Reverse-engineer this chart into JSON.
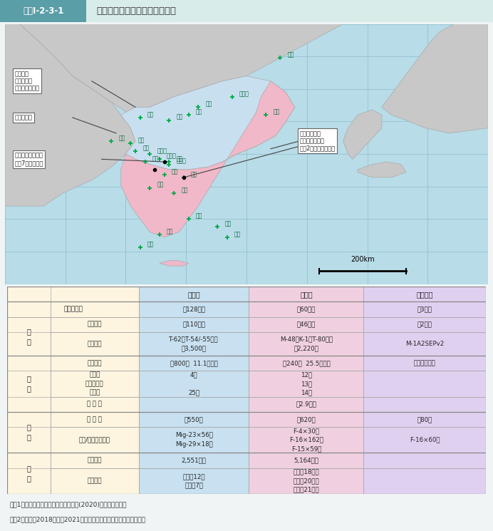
{
  "title_tag": "図表Ⅰ-2-3-1",
  "title_text": "朝鮮半島における軍事力の対峙",
  "title_bar_color": "#5a9ea8",
  "title_bg_color": "#d8ecea",
  "page_bg": "#f0f4f4",
  "note1": "（注1）資料は「ミリタリー・バランス(2020)」などによる。",
  "note2": "（注2）韓国は2018年から2021年にかけて兵役期間を段階的に短縮中",
  "map_sea_color": "#b8dce8",
  "map_land_color": "#c8c8c8",
  "map_nk_color": "#c8dff0",
  "map_sk_color": "#f0b8c8",
  "map_grid_color": "#90c0d0",
  "col_nk_bg": "#c8e0f0",
  "col_kr_bg": "#f0d0e0",
  "col_us_bg": "#e0d0f0",
  "row_bg": "#fdf5e0",
  "nk_data": [
    "約128万人",
    "約110万人",
    "T-62、T-54/-55など\n約3,500両",
    "約800隻  11.1万トン",
    "4隻\n\n25隻",
    "",
    "約550機",
    "Mig-23×56機\nMig-29×18機",
    "2,551万人",
    "男性　12年\n女性　7年"
  ],
  "kr_data": [
    "約60万人",
    "約46万人",
    "M-48、K-1、T-80など\n約2,220両",
    "約240隻  25.5万トン",
    "12隻\n13隻\n14隻",
    "約2.9万人",
    "約620機",
    "F-4×30機\nF-16×162機\nF-15×59機",
    "5,164万人",
    "陸軍　18か月\n海軍　20か月\n空軍　21か月"
  ],
  "us_data": [
    "約3万人",
    "約2万人",
    "M-1A2SEPv2",
    "支援部隊のみ",
    "",
    "",
    "約80機",
    "F-16×60機",
    "",
    ""
  ],
  "sub_labels": [
    "総　兵　力",
    "陸上兵力",
    "戦　　車",
    "艦　　艇",
    "駆逐艦\nフリゲート\n潜水艦",
    "海 兵 隊",
    "作 戦 機",
    "第３/４世代戦闘機",
    "人　　口",
    "兵　　役"
  ],
  "cat_labels": [
    "",
    "陸\n軍",
    "海\n軍",
    "空\n軍",
    "参\n考"
  ],
  "cat_row_ranges": [
    [
      0,
      1
    ],
    [
      1,
      3
    ],
    [
      3,
      6
    ],
    [
      6,
      8
    ],
    [
      8,
      10
    ]
  ]
}
